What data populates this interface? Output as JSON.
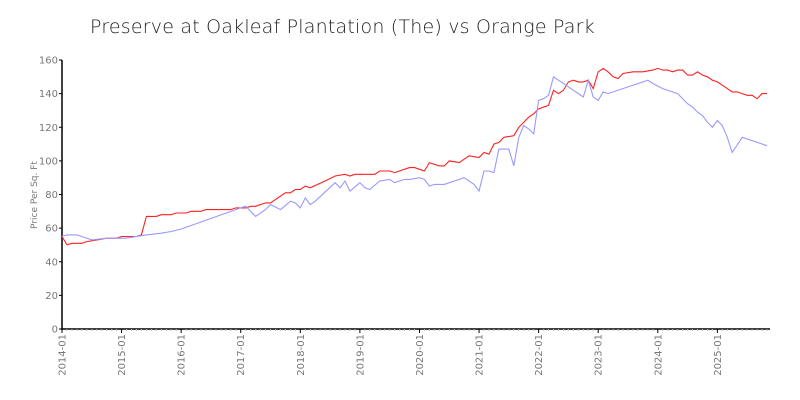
{
  "chart_data": {
    "type": "line",
    "title": "Preserve at Oakleaf Plantation (The) vs Orange Park",
    "xlabel": "",
    "ylabel": "Price Per Sq. Ft",
    "ylim": [
      0,
      160
    ],
    "xlim": [
      "2014-01",
      "2025-11"
    ],
    "yticks": [
      "0",
      "20",
      "40",
      "60",
      "80",
      "100",
      "120",
      "140",
      "160"
    ],
    "xticks": [
      "2014-01",
      "2015-01",
      "2016-01",
      "2017-01",
      "2018-01",
      "2019-01",
      "2020-01",
      "2021-01",
      "2022-01",
      "2023-01",
      "2024-01",
      "2025-01"
    ],
    "grid": false,
    "legend": "none",
    "series": [
      {
        "color": "#ff2020",
        "points": [
          [
            "2014-01",
            55
          ],
          [
            "2014-02",
            50
          ],
          [
            "2014-03",
            51
          ],
          [
            "2014-05",
            51
          ],
          [
            "2014-06",
            52
          ],
          [
            "2014-08",
            53
          ],
          [
            "2014-10",
            54
          ],
          [
            "2014-12",
            54
          ],
          [
            "2015-01",
            55
          ],
          [
            "2015-04",
            55
          ],
          [
            "2015-05",
            56
          ],
          [
            "2015-06",
            67
          ],
          [
            "2015-08",
            67
          ],
          [
            "2015-09",
            68
          ],
          [
            "2015-11",
            68
          ],
          [
            "2015-12",
            69
          ],
          [
            "2016-02",
            69
          ],
          [
            "2016-03",
            70
          ],
          [
            "2016-05",
            70
          ],
          [
            "2016-06",
            71
          ],
          [
            "2016-11",
            71
          ],
          [
            "2016-12",
            72
          ],
          [
            "2017-02",
            72
          ],
          [
            "2017-03",
            73
          ],
          [
            "2017-04",
            73
          ],
          [
            "2017-06",
            75
          ],
          [
            "2017-07",
            75
          ],
          [
            "2017-10",
            81
          ],
          [
            "2017-11",
            81
          ],
          [
            "2017-12",
            83
          ],
          [
            "2018-01",
            83
          ],
          [
            "2018-02",
            85
          ],
          [
            "2018-03",
            84
          ],
          [
            "2018-06",
            88
          ],
          [
            "2018-08",
            91
          ],
          [
            "2018-10",
            92
          ],
          [
            "2018-11",
            91
          ],
          [
            "2018-12",
            92
          ],
          [
            "2019-04",
            92
          ],
          [
            "2019-05",
            94
          ],
          [
            "2019-07",
            94
          ],
          [
            "2019-08",
            93
          ],
          [
            "2019-11",
            96
          ],
          [
            "2019-12",
            96
          ],
          [
            "2020-01",
            95
          ],
          [
            "2020-02",
            94
          ],
          [
            "2020-03",
            99
          ],
          [
            "2020-05",
            97
          ],
          [
            "2020-06",
            97
          ],
          [
            "2020-07",
            100
          ],
          [
            "2020-09",
            99
          ],
          [
            "2020-11",
            103
          ],
          [
            "2021-01",
            102
          ],
          [
            "2021-02",
            105
          ],
          [
            "2021-03",
            104
          ],
          [
            "2021-04",
            110
          ],
          [
            "2021-05",
            111
          ],
          [
            "2021-06",
            114
          ],
          [
            "2021-08",
            115
          ],
          [
            "2021-09",
            120
          ],
          [
            "2021-11",
            126
          ],
          [
            "2021-12",
            128
          ],
          [
            "2022-01",
            131
          ],
          [
            "2022-03",
            133
          ],
          [
            "2022-04",
            142
          ],
          [
            "2022-05",
            140
          ],
          [
            "2022-06",
            142
          ],
          [
            "2022-07",
            147
          ],
          [
            "2022-08",
            148
          ],
          [
            "2022-09",
            147
          ],
          [
            "2022-10",
            147
          ],
          [
            "2022-11",
            148
          ],
          [
            "2022-12",
            143
          ],
          [
            "2023-01",
            153
          ],
          [
            "2023-02",
            155
          ],
          [
            "2023-03",
            153
          ],
          [
            "2023-04",
            150
          ],
          [
            "2023-05",
            149
          ],
          [
            "2023-06",
            152
          ],
          [
            "2023-08",
            153
          ],
          [
            "2023-10",
            153
          ],
          [
            "2023-12",
            154
          ],
          [
            "2024-01",
            155
          ],
          [
            "2024-02",
            154
          ],
          [
            "2024-03",
            154
          ],
          [
            "2024-04",
            153
          ],
          [
            "2024-05",
            154
          ],
          [
            "2024-06",
            154
          ],
          [
            "2024-07",
            151
          ],
          [
            "2024-08",
            151
          ],
          [
            "2024-09",
            153
          ],
          [
            "2024-10",
            151
          ],
          [
            "2024-11",
            150
          ],
          [
            "2024-12",
            148
          ],
          [
            "2025-01",
            147
          ],
          [
            "2025-02",
            145
          ],
          [
            "2025-03",
            143
          ],
          [
            "2025-04",
            141
          ],
          [
            "2025-05",
            141
          ],
          [
            "2025-06",
            140
          ],
          [
            "2025-07",
            139
          ],
          [
            "2025-08",
            139
          ],
          [
            "2025-09",
            137
          ],
          [
            "2025-10",
            140
          ],
          [
            "2025-11",
            140
          ]
        ]
      },
      {
        "color": "#9999ff",
        "points": [
          [
            "2014-01",
            55
          ],
          [
            "2014-02",
            56
          ],
          [
            "2014-04",
            56
          ],
          [
            "2014-07",
            53
          ],
          [
            "2014-10",
            54
          ],
          [
            "2015-02",
            54
          ],
          [
            "2015-05",
            55.5
          ],
          [
            "2015-06",
            56
          ],
          [
            "2015-09",
            57
          ],
          [
            "2015-11",
            58
          ],
          [
            "2016-01",
            59.5
          ],
          [
            "2017-01",
            72
          ],
          [
            "2017-02",
            73
          ],
          [
            "2017-04",
            67
          ],
          [
            "2017-06",
            71
          ],
          [
            "2017-07",
            74
          ],
          [
            "2017-09",
            71
          ],
          [
            "2017-11",
            76
          ],
          [
            "2017-12",
            75
          ],
          [
            "2018-01",
            72
          ],
          [
            "2018-02",
            78
          ],
          [
            "2018-03",
            74
          ],
          [
            "2018-04",
            76
          ],
          [
            "2018-08",
            87
          ],
          [
            "2018-09",
            84
          ],
          [
            "2018-10",
            88
          ],
          [
            "2018-11",
            82
          ],
          [
            "2019-01",
            87
          ],
          [
            "2019-02",
            84
          ],
          [
            "2019-03",
            83
          ],
          [
            "2019-05",
            88
          ],
          [
            "2019-07",
            89
          ],
          [
            "2019-08",
            87
          ],
          [
            "2019-10",
            89
          ],
          [
            "2019-11",
            89
          ],
          [
            "2020-01",
            90
          ],
          [
            "2020-02",
            89
          ],
          [
            "2020-03",
            85
          ],
          [
            "2020-04",
            86
          ],
          [
            "2020-06",
            86
          ],
          [
            "2020-07",
            87
          ],
          [
            "2020-08",
            88
          ],
          [
            "2020-10",
            90
          ],
          [
            "2020-12",
            86
          ],
          [
            "2021-01",
            82
          ],
          [
            "2021-02",
            94
          ],
          [
            "2021-03",
            94
          ],
          [
            "2021-04",
            93
          ],
          [
            "2021-05",
            107
          ],
          [
            "2021-07",
            107
          ],
          [
            "2021-08",
            97
          ],
          [
            "2021-09",
            114
          ],
          [
            "2021-10",
            121
          ],
          [
            "2021-11",
            119
          ],
          [
            "2021-12",
            116
          ],
          [
            "2022-01",
            136
          ],
          [
            "2022-02",
            137
          ],
          [
            "2022-03",
            139
          ],
          [
            "2022-04",
            150
          ],
          [
            "2022-05",
            148
          ],
          [
            "2022-10",
            138
          ],
          [
            "2022-11",
            148
          ],
          [
            "2022-12",
            138
          ],
          [
            "2023-01",
            136
          ],
          [
            "2023-02",
            141
          ],
          [
            "2023-03",
            140
          ],
          [
            "2023-11",
            148
          ],
          [
            "2023-12",
            146
          ],
          [
            "2024-02",
            143
          ],
          [
            "2024-05",
            140
          ],
          [
            "2024-07",
            134
          ],
          [
            "2024-08",
            132
          ],
          [
            "2024-09",
            129
          ],
          [
            "2024-10",
            127
          ],
          [
            "2024-11",
            123
          ],
          [
            "2024-12",
            120
          ],
          [
            "2025-01",
            124
          ],
          [
            "2025-02",
            121
          ],
          [
            "2025-03",
            114
          ],
          [
            "2025-04",
            105
          ],
          [
            "2025-06",
            114
          ],
          [
            "2025-11",
            109
          ]
        ]
      }
    ]
  }
}
